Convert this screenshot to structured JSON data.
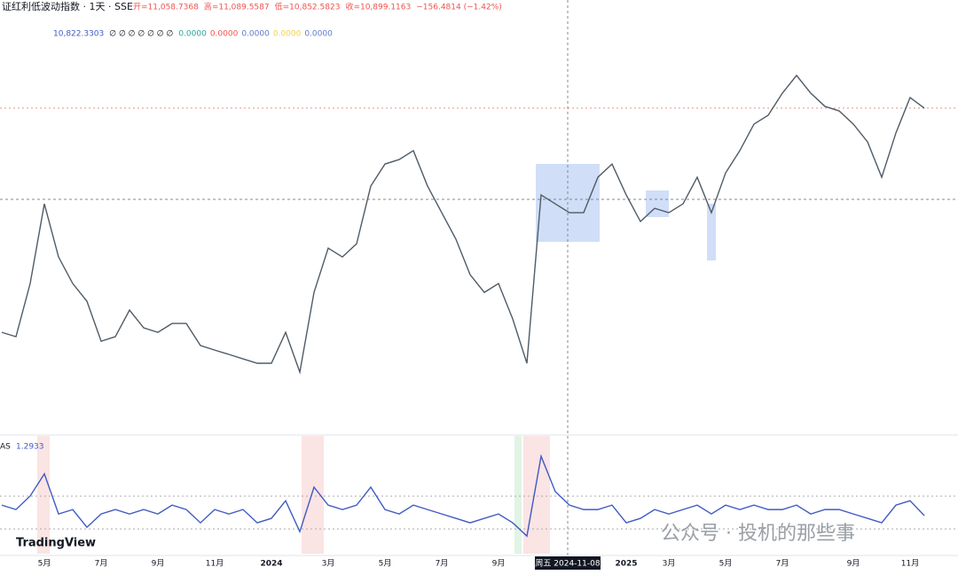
{
  "header": {
    "symbol": "证红利低波动指数 · 1天 · SSE",
    "ohlc": [
      "开=11,058.7368",
      "高=11,089.5587",
      "低=10,852.5823",
      "收=10,899.1163",
      "−156.4814 (−1.42%)"
    ],
    "ma_value": "10,822.3303",
    "empty_marks": "∅ ∅ ∅ ∅ ∅ ∅ ∅",
    "zero_values": [
      {
        "text": "0.0000",
        "color": "#26a69a"
      },
      {
        "text": "0.0000",
        "color": "#ef5350"
      },
      {
        "text": "0.0000",
        "color": "#5b7bc8"
      },
      {
        "text": "0.0000",
        "color": "#f2d04b"
      },
      {
        "text": "0.0000",
        "color": "#5b7bc8"
      }
    ]
  },
  "chart_data": [
    {
      "type": "line",
      "categories": [
        null,
        null,
        null,
        "5月",
        null,
        null,
        null,
        "7月",
        null,
        null,
        null,
        "9月",
        null,
        null,
        null,
        "11月",
        null,
        null,
        null,
        "2024",
        null,
        null,
        null,
        "3月",
        null,
        null,
        null,
        "5月",
        null,
        null,
        null,
        "7月",
        null,
        null,
        null,
        "9月",
        null,
        null,
        null,
        null,
        null,
        null,
        null,
        null,
        "2025",
        null,
        null,
        "3月",
        null,
        null,
        null,
        "5月",
        null,
        null,
        null,
        "7月",
        null,
        null,
        null,
        null,
        "9月",
        null,
        null,
        null,
        "11月",
        null
      ],
      "series": [
        {
          "name": "证红利低波动指数",
          "color": "#4f5b66",
          "values": [
            9507,
            9480,
            9810,
            10305,
            9975,
            9810,
            9700,
            9452,
            9480,
            9645,
            9535,
            9507,
            9562,
            9562,
            9425,
            9397,
            9370,
            9342,
            9315,
            9315,
            9507,
            9260,
            9755,
            10030,
            9975,
            10057,
            10415,
            10552,
            10580,
            10635,
            10415,
            10250,
            10085,
            9865,
            9755,
            9810,
            9590,
            9315,
            10360,
            10305,
            10250,
            10250,
            10470,
            10552,
            10360,
            10195,
            10277,
            10250,
            10305,
            10470,
            10250,
            10497,
            10635,
            10800,
            10855,
            10992,
            11102,
            10992,
            10910,
            10882,
            10800,
            10690,
            10470,
            10745,
            10965,
            10899
          ]
        }
      ],
      "ylim": [
        9040,
        11323
      ],
      "crosshair_label": "周五 2024-11-08"
    },
    {
      "type": "line",
      "series": [
        {
          "name": "AS",
          "color": "#3f5bc4",
          "values": [
            1.65,
            1.5,
            1.96,
            2.71,
            1.35,
            1.5,
            0.9,
            1.35,
            1.5,
            1.35,
            1.5,
            1.35,
            1.65,
            1.5,
            1.05,
            1.5,
            1.35,
            1.5,
            1.05,
            1.2,
            1.8,
            0.75,
            2.26,
            1.65,
            1.5,
            1.65,
            2.26,
            1.5,
            1.35,
            1.65,
            1.5,
            1.35,
            1.2,
            1.05,
            1.2,
            1.35,
            1.05,
            0.6,
            3.31,
            2.11,
            1.65,
            1.5,
            1.5,
            1.65,
            1.05,
            1.2,
            1.5,
            1.35,
            1.5,
            1.65,
            1.35,
            1.65,
            1.5,
            1.65,
            1.5,
            1.5,
            1.65,
            1.35,
            1.5,
            1.5,
            1.35,
            1.2,
            1.05,
            1.65,
            1.8,
            1.2933
          ]
        }
      ],
      "ylim": [
        0,
        4
      ]
    }
  ],
  "brand": "TradingView",
  "watermark": "公众号 · 投机的那些事"
}
